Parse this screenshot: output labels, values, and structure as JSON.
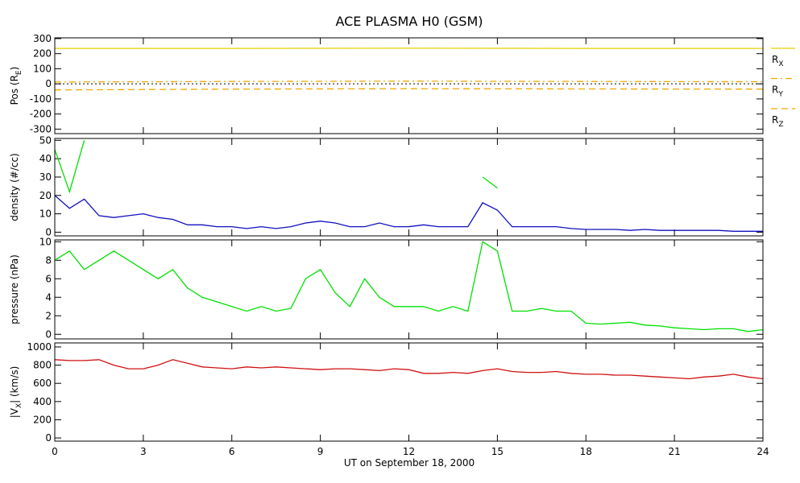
{
  "chart_data": [
    {
      "type": "line",
      "title": "ACE PLASMA H0 (GSM)",
      "ylabel": [
        "Pos (R",
        "E",
        ")"
      ],
      "x": [
        0,
        6,
        12,
        18,
        24
      ],
      "series": [
        {
          "name": "RX",
          "color": "#e8d000",
          "dash": "solid",
          "values": [
            235,
            235,
            236,
            235,
            235
          ]
        },
        {
          "name": "RY",
          "color": "#f0a800",
          "dash": "dashdot",
          "values": [
            12,
            16,
            18,
            16,
            14
          ]
        },
        {
          "name": "RZ",
          "color": "#f0a800",
          "dash": "dashed",
          "values": [
            -40,
            -35,
            -32,
            -34,
            -35
          ]
        }
      ],
      "xlim": [
        0,
        24
      ],
      "xticks": [
        0,
        3,
        6,
        9,
        12,
        15,
        18,
        21,
        24
      ],
      "ylim": [
        -330,
        305
      ],
      "yticks": [
        300,
        200,
        100,
        0,
        -100,
        -200,
        -300
      ],
      "zero_line": true
    },
    {
      "type": "line",
      "ylabel": [
        "density (#/cc)"
      ],
      "x": [
        0,
        0.5,
        1,
        1.5,
        2,
        2.5,
        3,
        3.5,
        4,
        4.5,
        5,
        5.5,
        6,
        6.5,
        7,
        7.5,
        8,
        8.5,
        9,
        9.5,
        10,
        10.5,
        11,
        11.5,
        12,
        12.5,
        13,
        13.5,
        14,
        14.5,
        15,
        15.5,
        16,
        16.5,
        17,
        17.5,
        18,
        18.5,
        19,
        19.5,
        20,
        20.5,
        21,
        21.5,
        22,
        22.5,
        23,
        23.5,
        24
      ],
      "series": [
        {
          "color": "#00e000",
          "values": [
            45,
            22,
            50,
            null,
            null,
            null,
            null,
            null,
            null,
            null,
            null,
            null,
            null,
            null,
            null,
            null,
            null,
            null,
            null,
            null,
            null,
            null,
            null,
            null,
            null,
            null,
            null,
            null,
            null,
            30,
            24,
            null,
            null,
            null,
            null,
            null,
            null,
            null,
            null,
            null,
            null,
            null,
            null,
            null,
            null,
            null,
            null,
            null,
            null
          ]
        },
        {
          "color": "#1010c0",
          "values": [
            20,
            13,
            18,
            9,
            8,
            9,
            10,
            8,
            7,
            4,
            4,
            3,
            3,
            2,
            3,
            2,
            3,
            5,
            6,
            5,
            3,
            3,
            5,
            3,
            3,
            4,
            3,
            3,
            3,
            16,
            12,
            3,
            3,
            3,
            3,
            2,
            1.5,
            1.5,
            1.5,
            1,
            1.5,
            1,
            1,
            1,
            1,
            1,
            0.5,
            0.5,
            0.5
          ]
        }
      ],
      "xlim": [
        0,
        24
      ],
      "xticks": [
        0,
        3,
        6,
        9,
        12,
        15,
        18,
        21,
        24
      ],
      "ylim": [
        -2,
        51
      ],
      "yticks": [
        0,
        10,
        20,
        30,
        40,
        50
      ]
    },
    {
      "type": "line",
      "ylabel": [
        "pressure (nPa)"
      ],
      "x": [
        0,
        0.5,
        1,
        1.5,
        2,
        2.5,
        3,
        3.5,
        4,
        4.5,
        5,
        5.5,
        6,
        6.5,
        7,
        7.5,
        8,
        8.5,
        9,
        9.5,
        10,
        10.5,
        11,
        11.5,
        12,
        12.5,
        13,
        13.5,
        14,
        14.5,
        15,
        15.5,
        16,
        16.5,
        17,
        17.5,
        18,
        18.5,
        19,
        19.5,
        20,
        20.5,
        21,
        21.5,
        22,
        22.5,
        23,
        23.5,
        24
      ],
      "series": [
        {
          "color": "#00e000",
          "values": [
            8,
            9,
            7,
            8,
            9,
            8,
            7,
            6,
            7,
            5,
            4,
            3.5,
            3,
            2.5,
            3,
            2.5,
            2.8,
            6,
            7,
            4.5,
            3,
            6,
            4,
            3,
            3,
            3,
            2.5,
            3,
            2.5,
            10,
            9,
            2.5,
            2.5,
            2.8,
            2.5,
            2.5,
            1.2,
            1.1,
            1.2,
            1.3,
            1,
            0.9,
            0.7,
            0.6,
            0.5,
            0.6,
            0.6,
            0.3,
            0.5
          ]
        }
      ],
      "xlim": [
        0,
        24
      ],
      "xticks": [
        0,
        3,
        6,
        9,
        12,
        15,
        18,
        21,
        24
      ],
      "ylim": [
        -0.5,
        10.2
      ],
      "yticks": [
        0,
        2,
        4,
        6,
        8,
        10
      ]
    },
    {
      "type": "line",
      "ylabel": [
        "|V",
        "X",
        "| (km/s)"
      ],
      "xlabel": "UT on September 18, 2000",
      "x": [
        0,
        0.5,
        1,
        1.5,
        2,
        2.5,
        3,
        3.5,
        4,
        4.5,
        5,
        5.5,
        6,
        6.5,
        7,
        7.5,
        8,
        8.5,
        9,
        9.5,
        10,
        10.5,
        11,
        11.5,
        12,
        12.5,
        13,
        13.5,
        14,
        14.5,
        15,
        15.5,
        16,
        16.5,
        17,
        17.5,
        18,
        18.5,
        19,
        19.5,
        20,
        20.5,
        21,
        21.5,
        22,
        22.5,
        23,
        23.5,
        24
      ],
      "series": [
        {
          "color": "#d01010",
          "values": [
            860,
            850,
            850,
            860,
            800,
            760,
            760,
            800,
            860,
            820,
            780,
            770,
            760,
            780,
            770,
            780,
            770,
            760,
            750,
            760,
            760,
            750,
            740,
            760,
            750,
            710,
            710,
            720,
            710,
            740,
            760,
            730,
            720,
            720,
            730,
            710,
            700,
            700,
            690,
            690,
            680,
            670,
            660,
            650,
            670,
            680,
            700,
            670,
            650
          ]
        }
      ],
      "xlim": [
        0,
        24
      ],
      "xticks": [
        0,
        3,
        6,
        9,
        12,
        15,
        18,
        21,
        24
      ],
      "ylim": [
        -35,
        1044
      ],
      "yticks": [
        0,
        200,
        400,
        600,
        800,
        1000
      ]
    }
  ]
}
